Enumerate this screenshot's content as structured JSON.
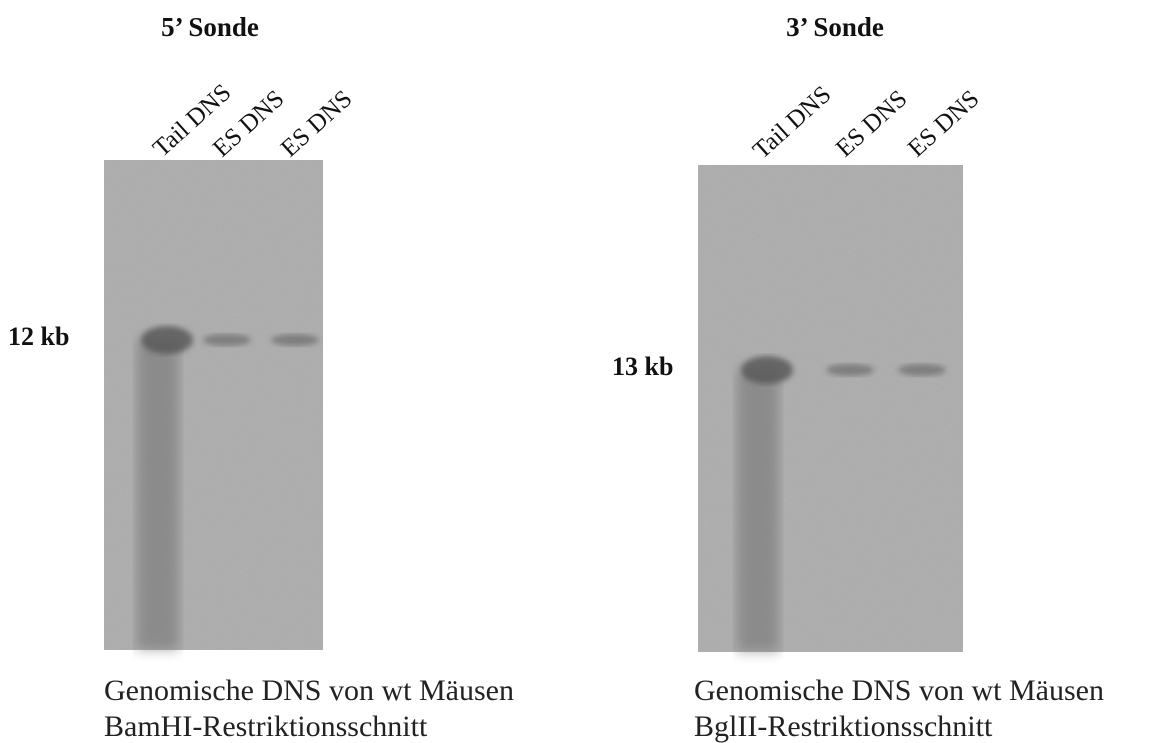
{
  "panels": [
    {
      "title": "5’ Sonde",
      "lanes": [
        "Tail DNS",
        "ES DNS",
        "ES DNS"
      ],
      "marker": "12 kb",
      "caption": [
        "Genomische DNS von wt Mäusen",
        "BamHI-Restriktionsschnitt"
      ]
    },
    {
      "title": "3’ Sonde",
      "lanes": [
        "Tail DNS",
        "ES DNS",
        "ES DNS"
      ],
      "marker": "13 kb",
      "caption": [
        "Genomische DNS von wt Mäusen",
        "BglII-Restriktionsschnitt"
      ]
    }
  ]
}
